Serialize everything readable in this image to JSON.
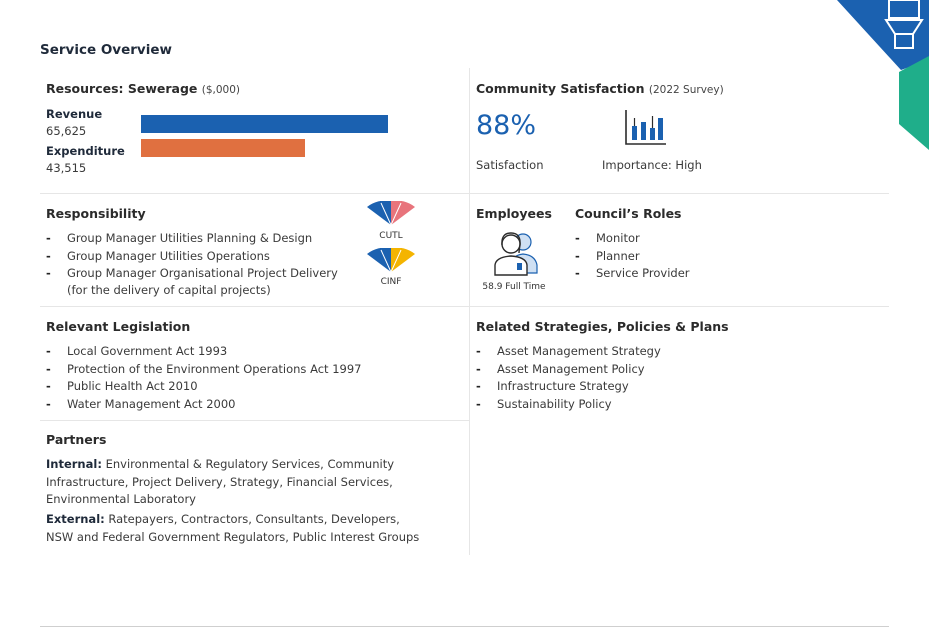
{
  "page": {
    "title": "Service Overview"
  },
  "resources": {
    "heading": "Resources: Sewerage",
    "unit": "($,000)",
    "revenue_label": "Revenue",
    "revenue_value": "65,625",
    "revenue_amount": 65625,
    "expenditure_label": "Expenditure",
    "expenditure_value": "43,515",
    "expenditure_amount": 43515,
    "revenue_color": "#1b61b0",
    "expenditure_color": "#e07040"
  },
  "community": {
    "heading": "Community Satisfaction",
    "note": "(2022 Survey)",
    "satisfaction_value": "88%",
    "satisfaction_label": "Satisfaction",
    "importance_label": "Importance: High",
    "importance_icon": "bar-chart-icon"
  },
  "responsibility": {
    "heading": "Responsibility",
    "items": [
      "Group Manager Utilities Planning & Design",
      "Group Manager Utilities Operations",
      "Group Manager Organisational Project Delivery",
      "(for the delivery of capital projects)"
    ],
    "badges": [
      "CUTL",
      "CINF"
    ]
  },
  "employees": {
    "heading": "Employees",
    "value": "58.9 Full Time",
    "icon": "employee-icon"
  },
  "roles": {
    "heading": "Council’s Roles",
    "items": [
      "Monitor",
      "Planner",
      "Service Provider"
    ]
  },
  "legislation": {
    "heading": "Relevant Legislation",
    "items": [
      "Local Government Act 1993",
      "Protection of the Environment Operations Act 1997",
      "Public Health Act 2010",
      "Water Management Act 2000"
    ]
  },
  "strategies": {
    "heading": "Related Strategies, Policies & Plans",
    "items": [
      "Asset Management Strategy",
      "Asset Management Policy",
      "Infrastructure Strategy",
      "Sustainability Policy"
    ]
  },
  "partners": {
    "heading": "Partners",
    "internal_label": "Internal:",
    "internal_text_1": "Environmental & Regulatory Services, Community",
    "internal_text_2": "Infrastructure, Project Delivery, Strategy, Financial Services,",
    "internal_text_3": "Environmental Laboratory",
    "external_label": "External:",
    "external_text_1": "Ratepayers, Contractors, Consultants, Developers,",
    "external_text_2": "NSW and Federal Government Regulators, Public Interest Groups"
  },
  "colors": {
    "accent_blue": "#1b61b0",
    "accent_teal": "#1fae8a",
    "accent_orange": "#e07040",
    "accent_yellow": "#f4b400"
  }
}
